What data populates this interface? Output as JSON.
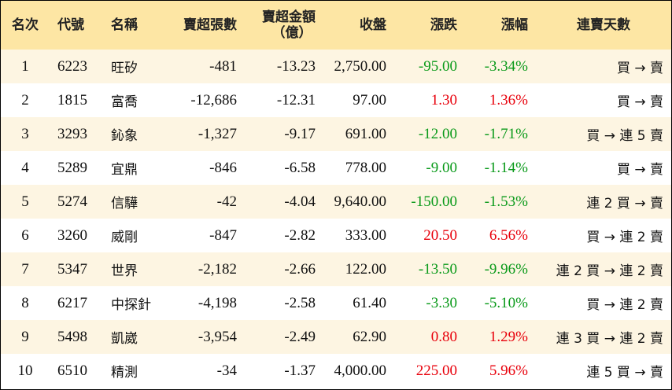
{
  "table": {
    "header": [
      "名次",
      "代號",
      "名稱",
      "賣超張數",
      [
        "賣超金額",
        "（億）"
      ],
      "收盤",
      "漲跌",
      "漲幅",
      "連賣天數"
    ],
    "colors": {
      "up": "#e8000b",
      "down": "#0a9a1a"
    },
    "rows": [
      [
        "1",
        "6223",
        "旺矽",
        "-481",
        "-13.23",
        "2,750.00",
        "-95.00",
        "-3.34%",
        "買 → 賣"
      ],
      [
        "2",
        "1815",
        "富喬",
        "-12,686",
        "-12.31",
        "97.00",
        "1.30",
        "1.36%",
        "買 → 賣"
      ],
      [
        "3",
        "3293",
        "鈊象",
        "-1,327",
        "-9.17",
        "691.00",
        "-12.00",
        "-1.71%",
        "買 → 連 5 賣"
      ],
      [
        "4",
        "5289",
        "宜鼎",
        "-846",
        "-6.58",
        "778.00",
        "-9.00",
        "-1.14%",
        "買 → 賣"
      ],
      [
        "5",
        "5274",
        "信驊",
        "-42",
        "-4.04",
        "9,640.00",
        "-150.00",
        "-1.53%",
        "連 2 買 → 賣"
      ],
      [
        "6",
        "3260",
        "威剛",
        "-847",
        "-2.82",
        "333.00",
        "20.50",
        "6.56%",
        "買 → 連 2 賣"
      ],
      [
        "7",
        "5347",
        "世界",
        "-2,182",
        "-2.66",
        "122.00",
        "-13.50",
        "-9.96%",
        "連 2 買 → 連 2 賣"
      ],
      [
        "8",
        "6217",
        "中探針",
        "-4,198",
        "-2.58",
        "61.40",
        "-3.30",
        "-5.10%",
        "買 → 連 2 賣"
      ],
      [
        "9",
        "5498",
        "凱崴",
        "-3,954",
        "-2.49",
        "62.90",
        "0.80",
        "1.29%",
        "連 3 買 → 連 2 賣"
      ],
      [
        "10",
        "6510",
        "精測",
        "-34",
        "-1.37",
        "4,000.00",
        "225.00",
        "5.96%",
        "連 5 買 → 賣"
      ]
    ]
  }
}
